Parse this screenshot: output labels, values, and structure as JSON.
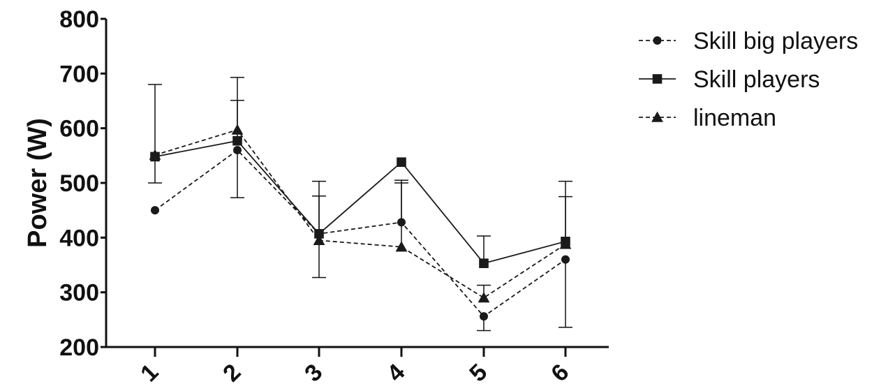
{
  "chart_data": {
    "type": "line",
    "title": "",
    "xlabel": "",
    "ylabel": "Power (W)",
    "categories": [
      "1",
      "2",
      "3",
      "4",
      "5",
      "6"
    ],
    "ylim": [
      200,
      800
    ],
    "yticks": [
      200,
      300,
      400,
      500,
      600,
      700,
      800
    ],
    "grid": false,
    "legend_position": "top-right",
    "series": [
      {
        "name": "Skill big players",
        "values": [
          450,
          560,
          407,
          428,
          256,
          360
        ],
        "err_low": [
          null,
          473,
          null,
          null,
          230,
          236
        ],
        "err_high": [
          null,
          null,
          null,
          500,
          null,
          null
        ],
        "marker": "circle",
        "line": "dashed",
        "color": "#1a1a1a"
      },
      {
        "name": "Skill players",
        "values": [
          548,
          577,
          407,
          538,
          353,
          393
        ],
        "err_low": [
          500,
          null,
          327,
          null,
          null,
          null
        ],
        "err_high": [
          680,
          651,
          503,
          null,
          403,
          503
        ],
        "marker": "square",
        "line": "solid",
        "color": "#1a1a1a"
      },
      {
        "name": "lineman",
        "values": [
          551,
          597,
          395,
          383,
          290,
          388
        ],
        "err_low": [
          null,
          null,
          null,
          null,
          null,
          null
        ],
        "err_high": [
          null,
          693,
          476,
          505,
          313,
          475
        ],
        "marker": "triangle",
        "line": "dashed",
        "color": "#1a1a1a"
      }
    ]
  }
}
